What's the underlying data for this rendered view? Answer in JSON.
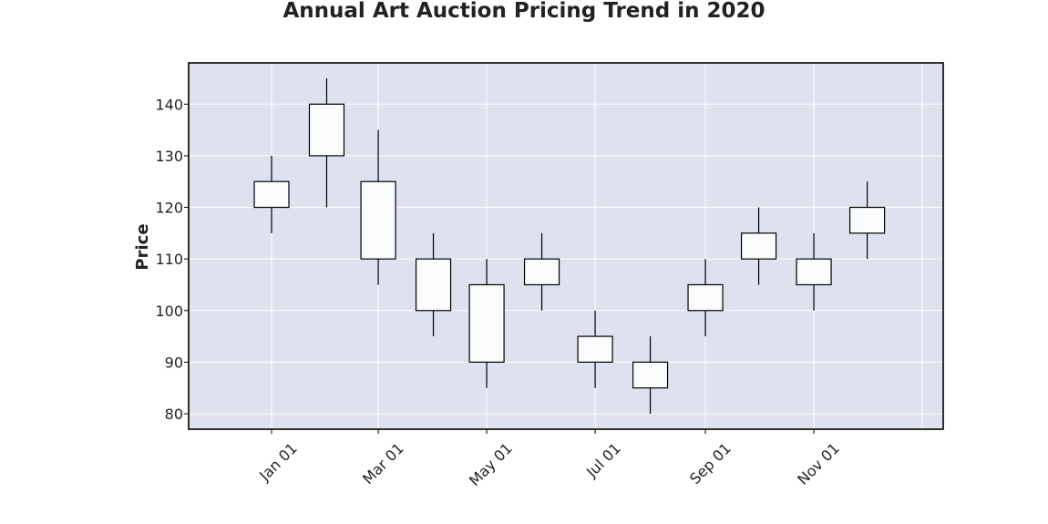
{
  "chart_data": {
    "type": "candlestick",
    "title": "Annual Art Auction Pricing Trend in 2020",
    "xlabel": "",
    "ylabel": "Price",
    "ylim": [
      77,
      148
    ],
    "yticks": [
      80,
      90,
      100,
      110,
      120,
      130,
      140
    ],
    "xticks": [
      "Jan 01",
      "Mar 01",
      "May 01",
      "Jul 01",
      "Sep 01",
      "Nov 01"
    ],
    "grid": true,
    "series": [
      {
        "candles": [
          {
            "date": "2020-01-01",
            "open": 120,
            "close": 125,
            "high": 130,
            "low": 115
          },
          {
            "date": "2020-02-01",
            "open": 130,
            "close": 140,
            "high": 145,
            "low": 120
          },
          {
            "date": "2020-03-01",
            "open": 125,
            "close": 110,
            "high": 135,
            "low": 105
          },
          {
            "date": "2020-04-01",
            "open": 110,
            "close": 100,
            "high": 115,
            "low": 95
          },
          {
            "date": "2020-05-01",
            "open": 105,
            "close": 90,
            "high": 110,
            "low": 85
          },
          {
            "date": "2020-06-01",
            "open": 105,
            "close": 110,
            "high": 115,
            "low": 100
          },
          {
            "date": "2020-07-01",
            "open": 95,
            "close": 90,
            "high": 100,
            "low": 85
          },
          {
            "date": "2020-08-01",
            "open": 90,
            "close": 85,
            "high": 95,
            "low": 80
          },
          {
            "date": "2020-09-01",
            "open": 100,
            "close": 105,
            "high": 110,
            "low": 95
          },
          {
            "date": "2020-10-01",
            "open": 110,
            "close": 115,
            "high": 120,
            "low": 105
          },
          {
            "date": "2020-11-01",
            "open": 110,
            "close": 105,
            "high": 115,
            "low": 100
          },
          {
            "date": "2020-12-01",
            "open": 115,
            "close": 120,
            "high": 125,
            "low": 110
          }
        ]
      }
    ],
    "colors": {
      "plot_background": "#dde2ee",
      "grid": "#ffffff",
      "candle_body": "#fbfcfe",
      "candle_edge": "#000000"
    }
  }
}
